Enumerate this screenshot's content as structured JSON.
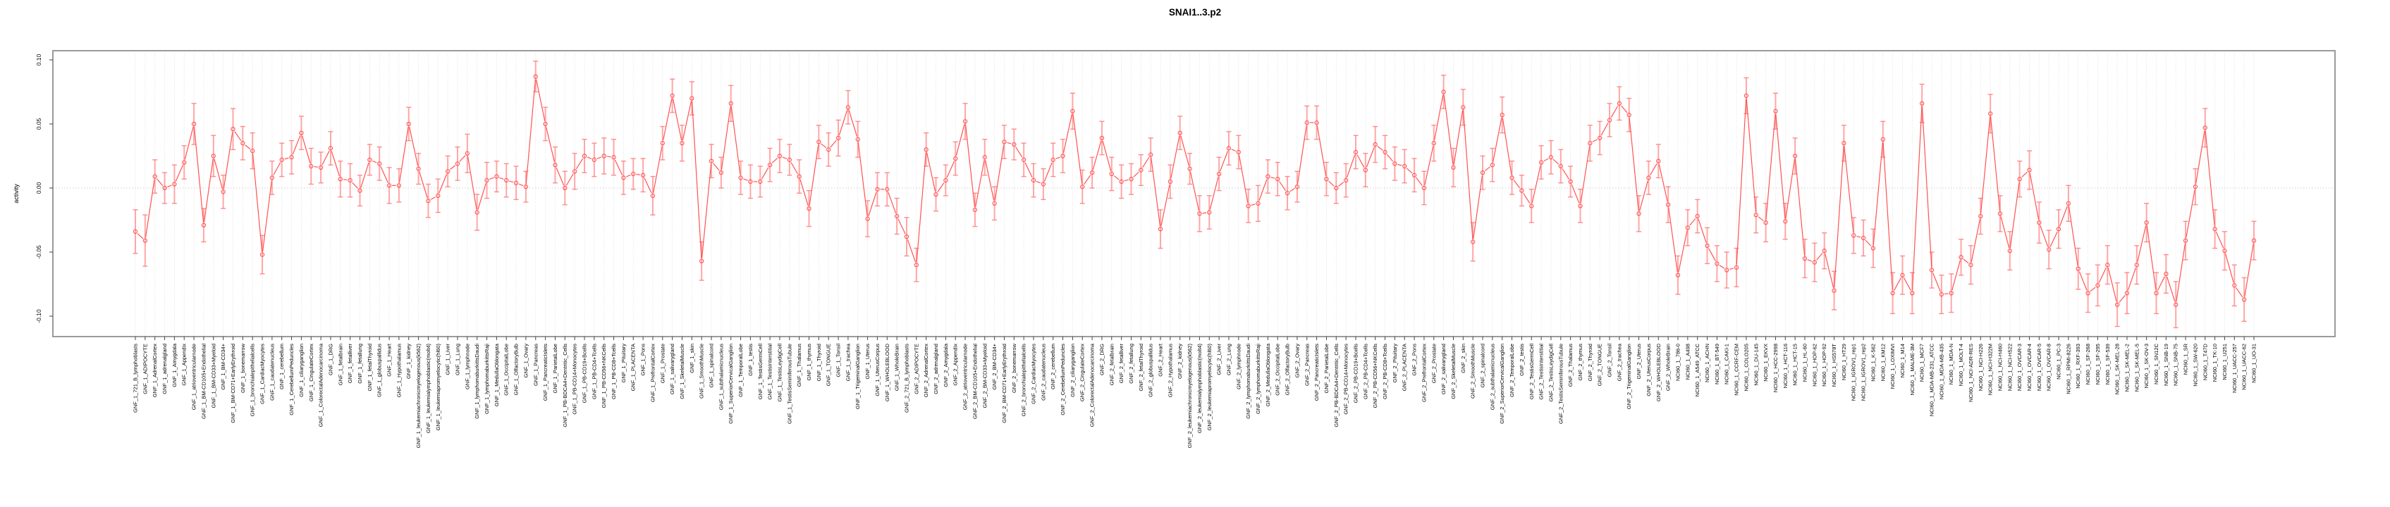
{
  "title": "SNAI1..3.p2",
  "chart_data": {
    "type": "line",
    "title": "SNAI1..3.p2",
    "xlabel": "",
    "ylabel": "activity",
    "ylim": [
      -0.116,
      0.107
    ],
    "yticks": [
      0.1,
      0.05,
      0.0,
      -0.05,
      -0.1
    ],
    "ytick_labels": [
      "0.10",
      "0.05",
      "0.00",
      "-0.05",
      "-0.10"
    ],
    "grid": "dotted vertical gridline per category; dotted horizontal line at 0",
    "legend_position": "none",
    "marker": "open-circle",
    "line_color": "#ff5252",
    "error_bar_color": "#ffa6a6",
    "error_cap_color": "#ff8a8a",
    "grid_color": "#d8d8d8",
    "box_color": "#909090",
    "tick_color": "#444444",
    "categories": [
      "GNF_1_721_B_lymphoblasts",
      "GNF_1_ADIPOCYTE",
      "GNF_1_AdrenalCortex",
      "GNF_1_adrenalgland",
      "GNF_1_Amygdala",
      "GNF_1_Appendix",
      "GNF_1_atrioventricularnode",
      "GNF_1_BM-CD105+Endothelial",
      "GNF_1_BM-CD33+Myeloid",
      "GNF_1_BM-CD34+",
      "GNF_1_BM-CD71+EarlyErythroid",
      "GNF_1_bonemarrow",
      "GNF_1_bronchialepithelialcells",
      "GNF_1_CardiacMyocytes",
      "GNF_1_caudatenucleus",
      "GNF_1_cerebellum",
      "GNF_1_CerebellumPeduncles",
      "GNF_1_ciliaryganglion",
      "GNF_1_CingulateCortex",
      "GNF_1_ColorectalAdenocarcinoma",
      "GNF_1_DRG",
      "GNF_1_fetalbrain",
      "GNF_1_fetalliver",
      "GNF_1_fetallung",
      "GNF_1_fetalThyroid",
      "GNF_1_globuspallidus",
      "GNF_1_Heart",
      "GNF_1_Hypothalamus",
      "GNF_1_kidney",
      "GNF_1_leukemiachronicmyelogenous(k562)",
      "GNF_1_leukemialymphoblastic(molt4)",
      "GNF_1_leukemiapromyelocytic(hl60)",
      "GNF_1_Liver",
      "GNF_1_Lung",
      "GNF_1_lymphnode",
      "GNF_1_lymphomaburkittsDaudi",
      "GNF_1_lymphomaburkittsRaji",
      "GNF_1_MedullaOblongata",
      "GNF_1_OccipitalLobe",
      "GNF_1_OlfactoryBulb",
      "GNF_1_Ovary",
      "GNF_1_Pancreas",
      "GNF_1_PancreaticIslets",
      "GNF_1_ParietalLobe",
      "GNF_1_PB-BDCA4+Dentritic_Cells",
      "GNF_1_PB-CD14+Monocytes",
      "GNF_1_PB-CD19+Bcells",
      "GNF_1_PB-CD4+Tcells",
      "GNF_1_PB-CD56+NKCells",
      "GNF_1_PB-CD8+Tcells",
      "GNF_1_Pituitary",
      "GNF_1_PLACENTA",
      "GNF_1_Pons",
      "GNF_1_PrefrontalCortex",
      "GNF_1_Prostate",
      "GNF_1_salivarygland",
      "GNF_1_SkeletalMuscle",
      "GNF_1_skin",
      "GNF_1_SmoothMuscle",
      "GNF_1_spinalcord",
      "GNF_1_subthalamicnucleus",
      "GNF_1_SuperiorCervicalGanglion",
      "GNF_1_TemporalLobe",
      "GNF_1_testis",
      "GNF_1_TestisGermCell",
      "GNF_1_TestisInterstitial",
      "GNF_1_TestisLeydigCell",
      "GNF_1_TestisSeminiferousTubule",
      "GNF_1_Thalamus",
      "GNF_1_thymus",
      "GNF_1_Thyroid",
      "GNF_1_TONGUE",
      "GNF_1_Tonsil",
      "GNF_1_trachea",
      "GNF_1_TrigeminalGanglion",
      "GNF_1_Uterus",
      "GNF_1_UterusCorpus",
      "GNF_1_WHOLEBLOOD",
      "GNF_1_WholeBrain",
      "GNF_2_721_B_lymphoblasts",
      "GNF_2_ADIPOCYTE",
      "GNF_2_AdrenalCortex",
      "GNF_2_adrenalgland",
      "GNF_2_Amygdala",
      "GNF_2_Appendix",
      "GNF_2_atrioventricularnode",
      "GNF_2_BM-CD105+Endothelial",
      "GNF_2_BM-CD33+Myeloid",
      "GNF_2_BM-CD34+",
      "GNF_2_BM-CD71+EarlyErythroid",
      "GNF_2_bonemarrow",
      "GNF_2_bronchialepithelialcells",
      "GNF_2_CardiacMyocytes",
      "GNF_2_caudatenucleus",
      "GNF_2_cerebellum",
      "GNF_2_CerebellumPeduncles",
      "GNF_2_ciliaryganglion",
      "GNF_2_CingulateCortex",
      "GNF_2_ColorectalAdenocarcinoma",
      "GNF_2_DRG",
      "GNF_2_fetalbrain",
      "GNF_2_fetalliver",
      "GNF_2_fetallung",
      "GNF_2_fetalThyroid",
      "GNF_2_globuspallidus",
      "GNF_2_Heart",
      "GNF_2_Hypothalamus",
      "GNF_2_kidney",
      "GNF_2_leukemiachronicmyelogenous(k562)",
      "GNF_2_leukemialymphoblastic(molt4)",
      "GNF_2_leukemiapromyelocytic(hl60)",
      "GNF_2_Liver",
      "GNF_2_Lung",
      "GNF_2_lymphnode",
      "GNF_2_lymphomaburkittsDaudi",
      "GNF_2_lymphomaburkittsRaji",
      "GNF_2_MedullaOblongata",
      "GNF_2_OccipitalLobe",
      "GNF_2_OlfactoryBulb",
      "GNF_2_Ovary",
      "GNF_2_Pancreas",
      "GNF_2_PancreaticIslets",
      "GNF_2_ParietalLobe",
      "GNF_2_PB-BDCA4+Dentritic_Cells",
      "GNF_2_PB-CD14+Monocytes",
      "GNF_2_PB-CD19+Bcells",
      "GNF_2_PB-CD4+Tcells",
      "GNF_2_PB-CD56+NKCells",
      "GNF_2_PB-CD8+Tcells",
      "GNF_2_Pituitary",
      "GNF_2_PLACENTA",
      "GNF_2_Pons",
      "GNF_2_PrefrontalCortex",
      "GNF_2_Prostate",
      "GNF_2_salivarygland",
      "GNF_2_SkeletalMuscle",
      "GNF_2_skin",
      "GNF_2_SmoothMuscle",
      "GNF_2_spinalcord",
      "GNF_2_subthalamicnucleus",
      "GNF_2_SuperiorCervicalGanglion",
      "GNF_2_TemporalLobe",
      "GNF_2_testis",
      "GNF_2_TestisGermCell",
      "GNF_2_TestisInterstitial",
      "GNF_2_TestisLeydigCell",
      "GNF_2_TestisSeminiferousTubule",
      "GNF_2_Thalamus",
      "GNF_2_thymus",
      "GNF_2_Thyroid",
      "GNF_2_TONGUE",
      "GNF_2_Tonsil",
      "GNF_2_trachea",
      "GNF_2_TrigeminalGanglion",
      "GNF_2_Uterus",
      "GNF_2_UterusCorpus",
      "GNF_2_WHOLEBLOOD",
      "GNF_2_WholeBrain",
      "NCI60_1_786-0",
      "NCI60_1_A498",
      "NCI60_1_A549_ATCC",
      "NCI60_1_ACHN",
      "NCI60_1_BT-549",
      "NCI60_1_CAKI-1",
      "NCI60_1_CCRF-CEM",
      "NCI60_1_COLO205",
      "NCI60_1_DU-145",
      "NCI60_1_EKVX",
      "NCI60_1_HCC-2998",
      "NCI60_1_HCT-116",
      "NCI60_1_HCT-15",
      "NCI60_1_HL-60",
      "NCI60_1_HOP-62",
      "NCI60_1_HOP-92",
      "NCI60_1_HS578T",
      "NCI60_1_HT29",
      "NCI60_1_IGROV1_rep1",
      "NCI60_1_IGROV1_rep2",
      "NCI60_1_K-562",
      "NCI60_1_KM12",
      "NCI60_1_LOXIMVI",
      "NCI60_1_M14",
      "NCI60_1_MALME-3M",
      "NCI60_1_MCF7",
      "NCI60_1_MDA-MB-231_ATCC",
      "NCI60_1_MDA-MB-435",
      "NCI60_1_MDA-N",
      "NCI60_1_MOLT-4",
      "NCI60_1_NCI-ADR-RES",
      "NCI60_1_NCI-H226",
      "NCI60_1_NCI-H322M",
      "NCI60_1_NCI-H460",
      "NCI60_1_NCI-H522",
      "NCI60_1_OVCAR-3",
      "NCI60_1_OVCAR-4",
      "NCI60_1_OVCAR-5",
      "NCI60_1_OVCAR-8",
      "NCI60_1_PC-3",
      "NCI60_1_RPMI-8226",
      "NCI60_1_RXF-393",
      "NCI60_1_SF-268",
      "NCI60_1_SF-295",
      "NCI60_1_SF-539",
      "NCI60_1_SK-MEL-28",
      "NCI60_1_SK-MEL-2",
      "NCI60_1_SK-MEL-5",
      "NCI60_1_SK-OV-3",
      "NCI60_1_SN12C",
      "NCI60_1_SNB-19",
      "NCI60_1_SNB-75",
      "NCI60_1_SR",
      "NCI60_1_SW-620",
      "NCI60_1_T47D",
      "NCI60_1_TK-10",
      "NCI60_1_U251",
      "NCI60_1_UACC-257",
      "NCI60_1_UACC-62",
      "NCI60_1_UO-31"
    ],
    "values": [
      -0.034,
      -0.041,
      0.009,
      0.0,
      0.003,
      0.02,
      0.05,
      -0.029,
      0.025,
      -0.003,
      0.046,
      0.035,
      0.029,
      -0.052,
      0.008,
      0.022,
      0.024,
      0.043,
      0.017,
      0.016,
      0.031,
      0.007,
      0.006,
      -0.002,
      0.022,
      0.019,
      0.002,
      0.002,
      0.05,
      0.015,
      -0.01,
      -0.006,
      0.013,
      0.019,
      0.027,
      -0.019,
      0.006,
      0.009,
      0.006,
      0.004,
      0.001,
      0.087,
      0.05,
      0.018,
      0.0,
      0.013,
      0.025,
      0.022,
      0.025,
      0.024,
      0.008,
      0.011,
      0.01,
      -0.006,
      0.035,
      0.072,
      0.035,
      0.07,
      -0.057,
      0.021,
      0.012,
      0.066,
      0.008,
      0.005,
      0.005,
      0.018,
      0.025,
      0.022,
      0.009,
      -0.016,
      0.036,
      0.03,
      0.039,
      0.063,
      0.038,
      -0.024,
      -0.001,
      -0.001,
      -0.022,
      -0.038,
      -0.06,
      0.03,
      -0.005,
      0.006,
      0.023,
      0.052,
      -0.017,
      0.024,
      -0.012,
      0.036,
      0.034,
      0.022,
      0.006,
      0.003,
      0.022,
      0.025,
      0.06,
      0.001,
      0.012,
      0.039,
      0.011,
      0.005,
      0.007,
      0.014,
      0.026,
      -0.032,
      0.005,
      0.043,
      0.015,
      -0.02,
      -0.019,
      0.011,
      0.031,
      0.028,
      -0.014,
      -0.012,
      0.009,
      0.007,
      -0.004,
      0.001,
      0.051,
      0.051,
      0.007,
      0.0,
      0.006,
      0.028,
      0.014,
      0.034,
      0.028,
      0.019,
      0.017,
      0.01,
      0.0,
      0.035,
      0.075,
      0.016,
      0.063,
      -0.042,
      0.012,
      0.018,
      0.057,
      0.008,
      -0.002,
      -0.014,
      0.02,
      0.024,
      0.017,
      0.005,
      -0.014,
      0.035,
      0.039,
      0.053,
      0.066,
      0.057,
      -0.02,
      0.008,
      0.021,
      -0.013,
      -0.068,
      -0.031,
      -0.022,
      -0.045,
      -0.059,
      -0.064,
      -0.062,
      0.072,
      -0.021,
      -0.027,
      0.06,
      -0.026,
      0.025,
      -0.055,
      -0.058,
      -0.049,
      -0.08,
      0.035,
      -0.037,
      -0.039,
      -0.047,
      0.038,
      -0.082,
      -0.068,
      -0.082,
      0.066,
      -0.064,
      -0.083,
      -0.082,
      -0.054,
      -0.06,
      -0.022,
      0.058,
      -0.02,
      -0.049,
      0.007,
      0.014,
      -0.027,
      -0.048,
      -0.032,
      -0.012,
      -0.063,
      -0.082,
      -0.076,
      -0.06,
      -0.091,
      -0.082,
      -0.06,
      -0.027,
      -0.082,
      -0.067,
      -0.091,
      -0.041,
      0.001,
      0.047,
      -0.032,
      -0.049,
      -0.076,
      -0.087,
      -0.041
    ],
    "errors": [
      0.017,
      0.02,
      0.013,
      0.012,
      0.015,
      0.013,
      0.016,
      0.013,
      0.016,
      0.013,
      0.016,
      0.013,
      0.014,
      0.015,
      0.013,
      0.013,
      0.013,
      0.013,
      0.014,
      0.012,
      0.013,
      0.014,
      0.013,
      0.012,
      0.012,
      0.013,
      0.014,
      0.013,
      0.013,
      0.012,
      0.013,
      0.013,
      0.012,
      0.013,
      0.015,
      0.014,
      0.014,
      0.012,
      0.013,
      0.013,
      0.012,
      0.012,
      0.013,
      0.014,
      0.013,
      0.014,
      0.013,
      0.013,
      0.014,
      0.014,
      0.013,
      0.012,
      0.013,
      0.015,
      0.013,
      0.013,
      0.014,
      0.013,
      0.015,
      0.013,
      0.012,
      0.014,
      0.013,
      0.013,
      0.012,
      0.013,
      0.013,
      0.012,
      0.013,
      0.014,
      0.013,
      0.013,
      0.014,
      0.013,
      0.014,
      0.014,
      0.013,
      0.013,
      0.014,
      0.015,
      0.013,
      0.013,
      0.013,
      0.012,
      0.013,
      0.014,
      0.013,
      0.014,
      0.013,
      0.013,
      0.012,
      0.013,
      0.013,
      0.012,
      0.013,
      0.013,
      0.014,
      0.013,
      0.012,
      0.013,
      0.013,
      0.013,
      0.012,
      0.012,
      0.013,
      0.015,
      0.013,
      0.013,
      0.012,
      0.014,
      0.013,
      0.013,
      0.013,
      0.013,
      0.013,
      0.014,
      0.013,
      0.013,
      0.013,
      0.012,
      0.013,
      0.013,
      0.013,
      0.012,
      0.013,
      0.013,
      0.013,
      0.014,
      0.013,
      0.013,
      0.013,
      0.013,
      0.013,
      0.014,
      0.013,
      0.015,
      0.014,
      0.015,
      0.013,
      0.013,
      0.014,
      0.013,
      0.012,
      0.013,
      0.013,
      0.013,
      0.013,
      0.012,
      0.013,
      0.014,
      0.013,
      0.013,
      0.013,
      0.013,
      0.014,
      0.013,
      0.013,
      0.014,
      0.015,
      0.014,
      0.013,
      0.014,
      0.014,
      0.014,
      0.015,
      0.014,
      0.014,
      0.015,
      0.014,
      0.014,
      0.014,
      0.015,
      0.015,
      0.014,
      0.015,
      0.014,
      0.014,
      0.014,
      0.015,
      0.014,
      0.016,
      0.015,
      0.016,
      0.015,
      0.014,
      0.015,
      0.015,
      0.014,
      0.015,
      0.014,
      0.015,
      0.014,
      0.015,
      0.014,
      0.015,
      0.016,
      0.015,
      0.015,
      0.014,
      0.016,
      0.015,
      0.016,
      0.015,
      0.017,
      0.016,
      0.015,
      0.015,
      0.016,
      0.015,
      0.018,
      0.015,
      0.014,
      0.015,
      0.015,
      0.015,
      0.016,
      0.017,
      0.015
    ]
  }
}
